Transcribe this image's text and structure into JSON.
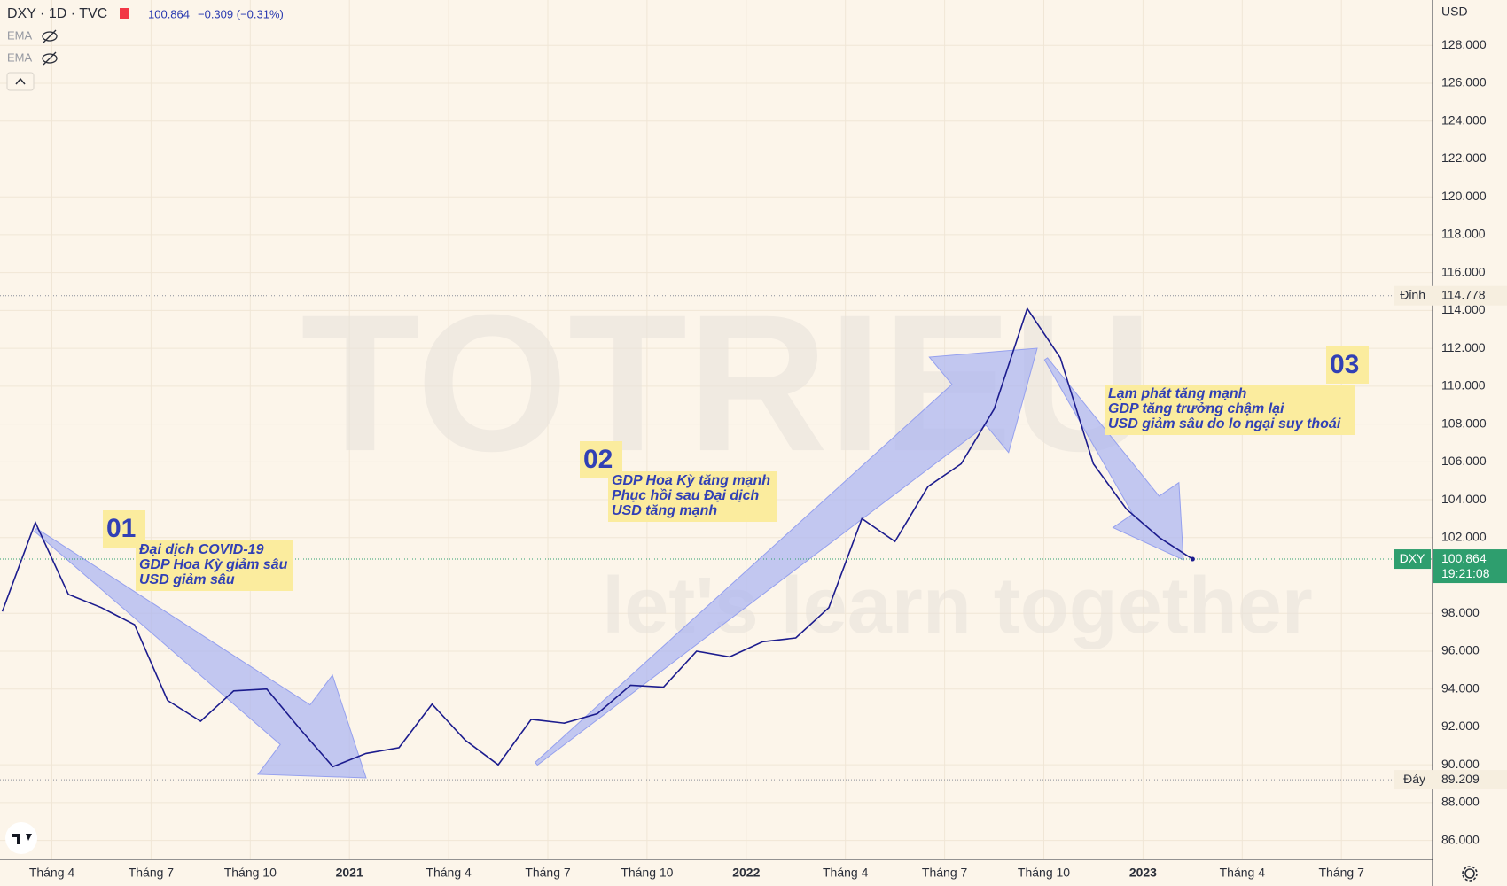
{
  "header": {
    "symbol": "DXY · 1D · TVC",
    "change": "−0.309 (−0.31%)",
    "indicators": [
      "EMA",
      "EMA"
    ]
  },
  "chart_data": {
    "type": "line",
    "x": [
      "2020-02",
      "2020-03",
      "2020-04",
      "2020-05",
      "2020-06",
      "2020-07",
      "2020-08",
      "2020-09",
      "2020-10",
      "2020-11",
      "2020-12",
      "2021-01",
      "2021-02",
      "2021-03",
      "2021-04",
      "2021-05",
      "2021-06",
      "2021-07",
      "2021-08",
      "2021-09",
      "2021-10",
      "2021-11",
      "2021-12",
      "2022-01",
      "2022-02",
      "2022-03",
      "2022-04",
      "2022-05",
      "2022-06",
      "2022-07",
      "2022-08",
      "2022-09",
      "2022-10",
      "2022-11",
      "2022-12",
      "2023-01",
      "2023-02"
    ],
    "series": [
      {
        "name": "DXY",
        "color": "#1c1c8e",
        "values": [
          98.1,
          102.8,
          99.0,
          98.3,
          97.4,
          93.4,
          92.3,
          93.9,
          94.0,
          91.9,
          89.9,
          90.6,
          90.9,
          93.2,
          91.3,
          90.0,
          92.4,
          92.2,
          92.7,
          94.2,
          94.1,
          96.0,
          95.7,
          96.5,
          96.7,
          98.3,
          103.0,
          101.8,
          104.7,
          105.9,
          108.8,
          114.1,
          111.5,
          105.9,
          103.5,
          102.0,
          100.864
        ]
      }
    ],
    "ylim": [
      85,
      130.4
    ],
    "yticks": [
      {
        "value": 86,
        "label": "86.000"
      },
      {
        "value": 88,
        "label": "88.000"
      },
      {
        "value": 90,
        "label": "90.000"
      },
      {
        "value": 92,
        "label": "92.000"
      },
      {
        "value": 94,
        "label": "94.000"
      },
      {
        "value": 96,
        "label": "96.000"
      },
      {
        "value": 98,
        "label": "98.000"
      },
      {
        "value": 102,
        "label": "102.000"
      },
      {
        "value": 104,
        "label": "104.000"
      },
      {
        "value": 106,
        "label": "106.000"
      },
      {
        "value": 108,
        "label": "108.000"
      },
      {
        "value": 110,
        "label": "110.000"
      },
      {
        "value": 112,
        "label": "112.000"
      },
      {
        "value": 114,
        "label": "114.000"
      },
      {
        "value": 116,
        "label": "116.000"
      },
      {
        "value": 118,
        "label": "118.000"
      },
      {
        "value": 120,
        "label": "120.000"
      },
      {
        "value": 122,
        "label": "122.000"
      },
      {
        "value": 124,
        "label": "124.000"
      },
      {
        "value": 126,
        "label": "126.000"
      },
      {
        "value": 128,
        "label": "128.000"
      }
    ],
    "xticks": [
      {
        "value": "2020-04",
        "label": "Tháng 4"
      },
      {
        "value": "2020-07",
        "label": "Tháng 7"
      },
      {
        "value": "2020-10",
        "label": "Tháng 10"
      },
      {
        "value": "2021-01",
        "label": "2021"
      },
      {
        "value": "2021-04",
        "label": "Tháng 4"
      },
      {
        "value": "2021-07",
        "label": "Tháng 7"
      },
      {
        "value": "2021-10",
        "label": "Tháng 10"
      },
      {
        "value": "2022-01",
        "label": "2022"
      },
      {
        "value": "2022-04",
        "label": "Tháng 4"
      },
      {
        "value": "2022-07",
        "label": "Tháng 7"
      },
      {
        "value": "2022-10",
        "label": "Tháng 10"
      },
      {
        "value": "2023-01",
        "label": "2023"
      },
      {
        "value": "2023-04",
        "label": "Tháng 4"
      },
      {
        "value": "2023-07",
        "label": "Tháng 7"
      }
    ],
    "grid": true,
    "currency": "USD",
    "price_lines": [
      {
        "label": "Đỉnh",
        "value": 114.778
      },
      {
        "label": "Đáy",
        "value": 89.209
      }
    ],
    "countdown": "19:21:08",
    "annotations": [
      {
        "number": "01",
        "lines": [
          "Đại dịch COVID-19",
          "GDP Hoa Kỳ giảm sâu",
          "USD giảm sâu"
        ]
      },
      {
        "number": "02",
        "lines": [
          "GDP Hoa Kỳ tăng mạnh",
          "Phục hồi sau Đại dịch",
          "USD tăng mạnh"
        ]
      },
      {
        "number": "03",
        "lines": [
          "Lạm phát tăng mạnh",
          "GDP tăng trưởng chậm lại",
          "USD giảm sâu do lo ngại suy thoái"
        ]
      }
    ],
    "watermark": [
      "TOTRIEU",
      "let's learn together"
    ]
  }
}
